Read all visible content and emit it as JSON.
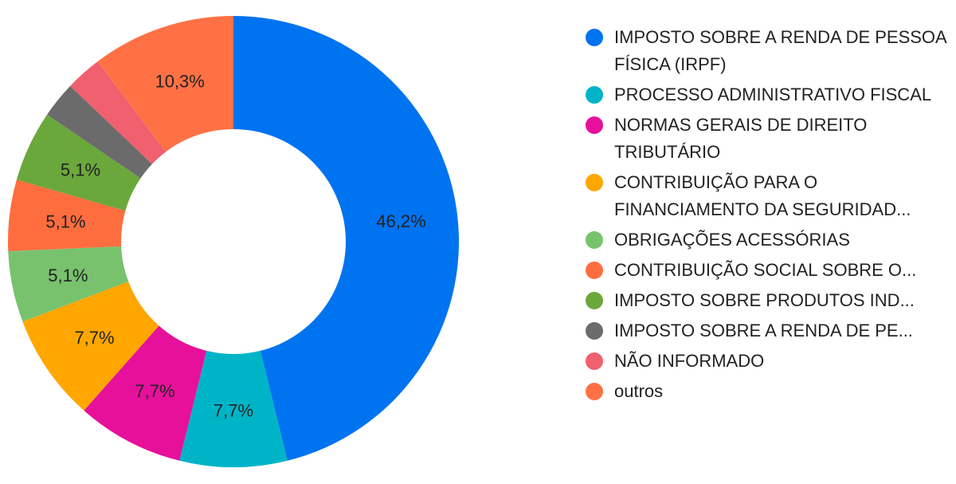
{
  "chart_data": {
    "type": "pie",
    "donut": true,
    "slices": [
      {
        "label": "IMPOSTO SOBRE A RENDA DE PESSOA FÍSICA (IRPF)",
        "value": 46.2,
        "display": "46,2%",
        "color": "#0073f0"
      },
      {
        "label": "PROCESSO ADMINISTRATIVO FISCAL",
        "value": 7.7,
        "display": "7,7%",
        "color": "#00b4c8"
      },
      {
        "label": "NORMAS GERAIS DE DIREITO TRIBUTÁRIO",
        "value": 7.7,
        "display": "7,7%",
        "color": "#e6109b"
      },
      {
        "label": "CONTRIBUIÇÃO PARA O FINANCIAMENTO DA SEGURIDAD...",
        "value": 7.7,
        "display": "7,7%",
        "color": "#ffa600"
      },
      {
        "label": "OBRIGAÇÕES ACESSÓRIAS",
        "value": 5.1,
        "display": "5,1%",
        "color": "#78c26e"
      },
      {
        "label": "CONTRIBUIÇÃO SOCIAL SOBRE O...",
        "value": 5.1,
        "display": "5,1%",
        "color": "#ff6d3f"
      },
      {
        "label": "IMPOSTO SOBRE PRODUTOS IND...",
        "value": 5.1,
        "display": "5,1%",
        "color": "#6ba83c"
      },
      {
        "label": "IMPOSTO SOBRE A RENDA DE PE...",
        "value": 2.6,
        "display": "",
        "color": "#6b6b6b"
      },
      {
        "label": "NÃO INFORMADO",
        "value": 2.6,
        "display": "",
        "color": "#f0606e"
      },
      {
        "label": "outros",
        "value": 10.3,
        "display": "10,3%",
        "color": "#ff7145"
      }
    ]
  }
}
